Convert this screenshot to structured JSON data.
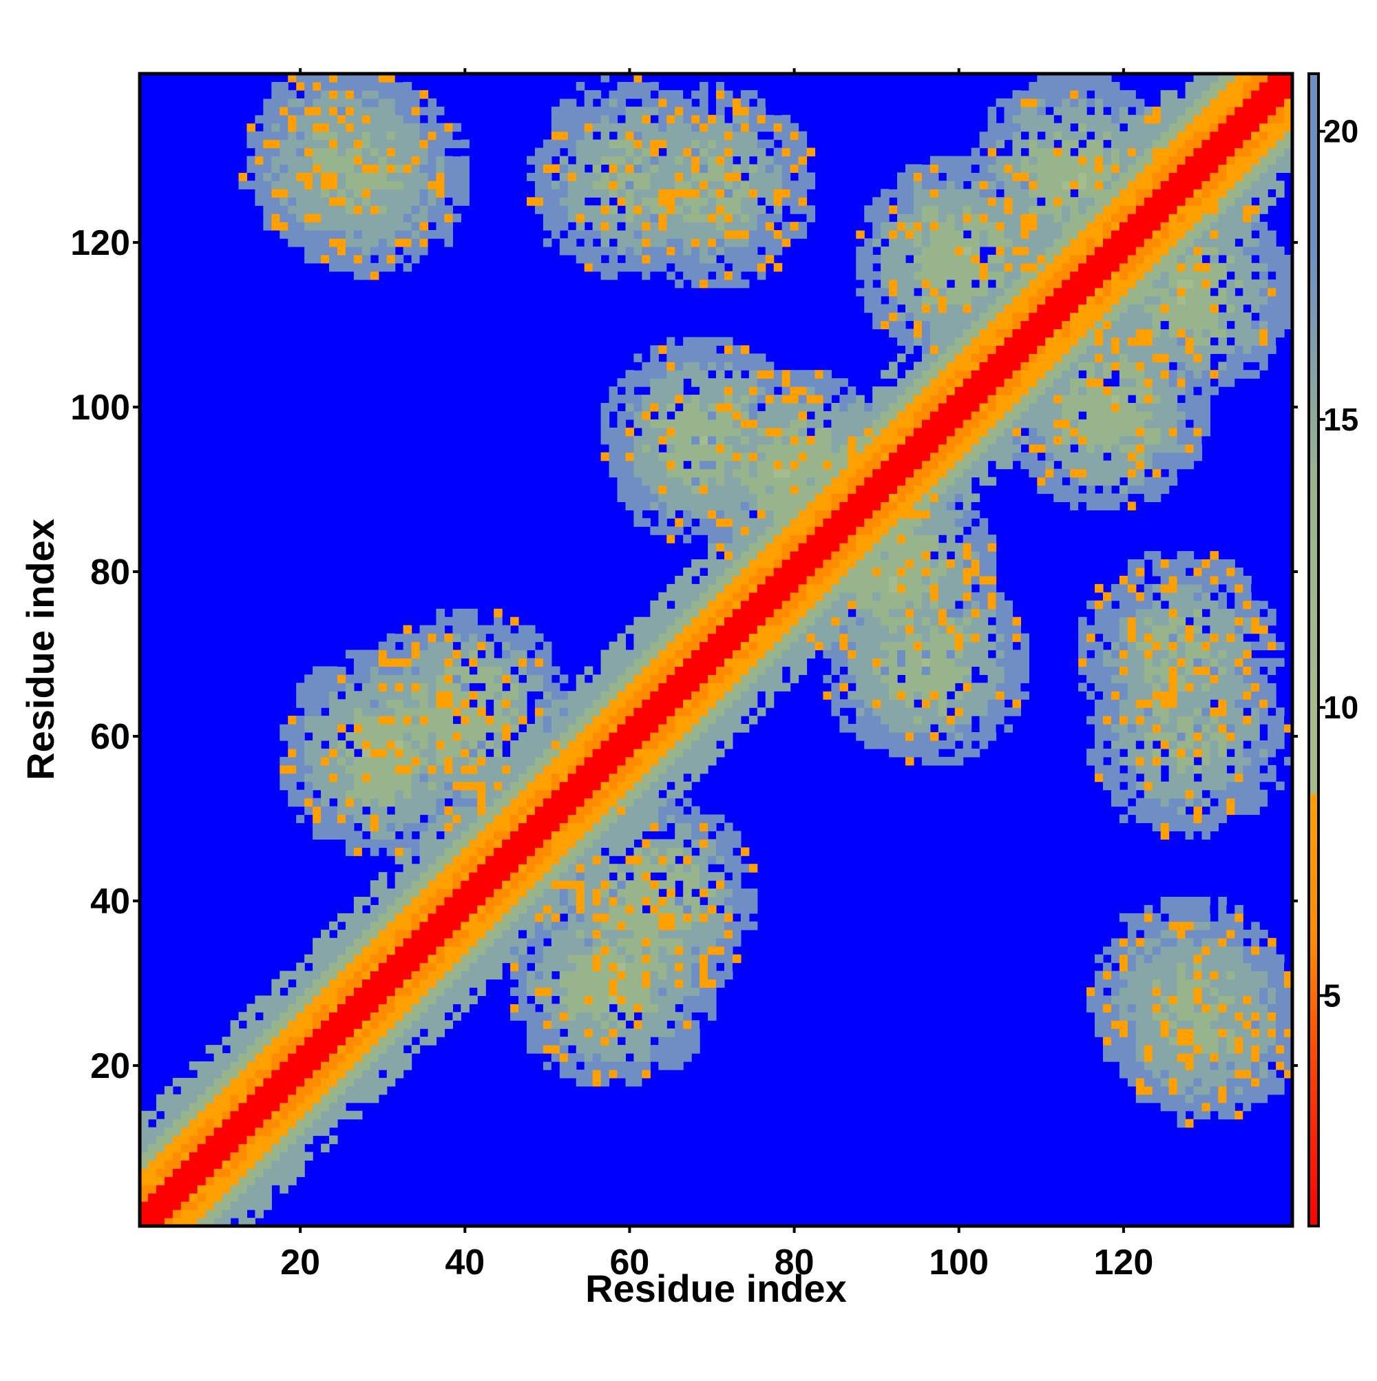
{
  "chart_data": {
    "type": "heatmap",
    "title": "",
    "xlabel": "Residue index",
    "ylabel": "Residue index",
    "x_range": [
      1,
      140
    ],
    "y_range": [
      1,
      140
    ],
    "x_ticks": [
      20,
      40,
      60,
      80,
      100,
      120
    ],
    "y_ticks": [
      20,
      40,
      60,
      80,
      100,
      120
    ],
    "value_range": [
      1,
      21
    ],
    "colorbar": {
      "ticks": [
        5,
        10,
        15,
        20
      ],
      "stops": [
        {
          "value": 1,
          "color": "#ff0000"
        },
        {
          "value": 3.5,
          "color": "#ff3a00"
        },
        {
          "value": 6,
          "color": "#ff8c00"
        },
        {
          "value": 8.5,
          "color": "#ffa000"
        },
        {
          "value": 8.5,
          "color": "#a5bc8e"
        },
        {
          "value": 10,
          "color": "#a5bc8e"
        },
        {
          "value": 14,
          "color": "#98b48d"
        },
        {
          "value": 18,
          "color": "#6f8fc4"
        },
        {
          "value": 21,
          "color": "#6f8fc4"
        },
        {
          "value": 21,
          "color": "#0000ff"
        }
      ]
    },
    "background_value": 21,
    "background_color": "#0000ff",
    "description_of_structure": {
      "diagonal": "distance ~1 on diagonal, rising to ~9 within 6 residues off-diagonal",
      "contact_blocks": [
        {
          "x_center": 28,
          "y_center": 128,
          "value": 11
        },
        {
          "x_center": 70,
          "y_center": 127,
          "value": 11
        },
        {
          "x_center": 114,
          "y_center": 128,
          "value": 10
        },
        {
          "x_center": 80,
          "y_center": 92,
          "value": 10
        },
        {
          "x_center": 118,
          "y_center": 100,
          "value": 10
        },
        {
          "x_center": 30,
          "y_center": 58,
          "value": 10
        },
        {
          "x_center": 63,
          "y_center": 40,
          "value": 10
        },
        {
          "x_center": 96,
          "y_center": 69,
          "value": 10
        },
        {
          "x_center": 128,
          "y_center": 60,
          "value": 11
        },
        {
          "x_center": 130,
          "y_center": 25,
          "value": 11
        }
      ]
    }
  }
}
